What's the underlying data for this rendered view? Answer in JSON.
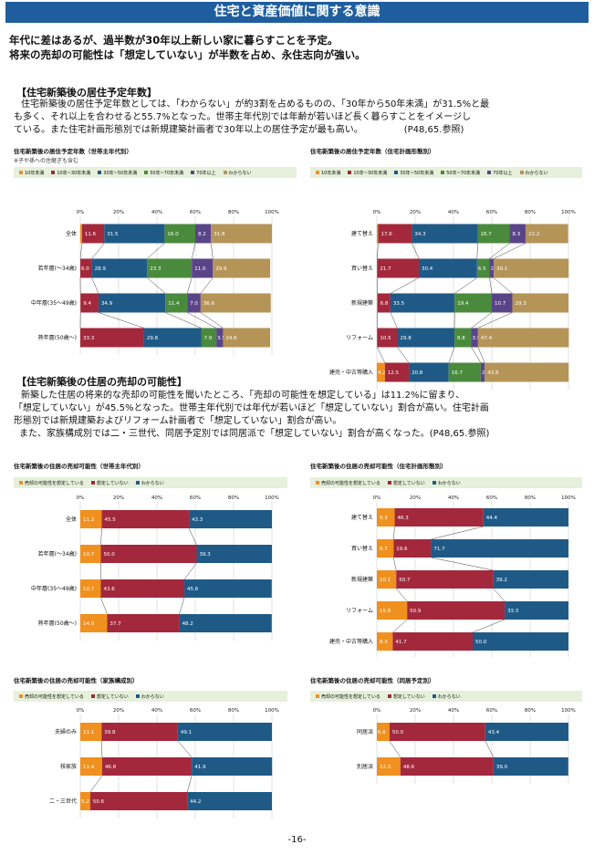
{
  "banner": "住宅と資産価値に関する意識",
  "headline": [
    "年代に差はあるが、過半数が30年以上新しい家に暮らすことを予定。",
    "将来の売却の可能性は「想定していない」が半数を占め、永住志向が強い。"
  ],
  "section1": {
    "title": "【住宅新築後の居住予定年数】",
    "lines": [
      "住宅新築後の居住予定年数としては、「わからない」が約3割を占めるものの、「30年から50年未満」が31.5%と最",
      "も多く、それ以上を合わせると55.7%となった。世帯主年代別では年齢が若いほど長く暮らすことをイメージし",
      "ている。また住宅計画形態別では新規建築計画者で30年以上の居住予定が最も高い。　　　　　(P48,65.参照)"
    ]
  },
  "section2": {
    "title": "【住宅新築後の住居の売却の可能性】",
    "lines": [
      "新築した住居の将来的な売却の可能性を聞いたところ、「売却の可能性を想定している」は11.2%に留まり、",
      "「想定していない」が45.5%となった。世帯主年代別では年代が若いほど「想定していない」割合が高い。住宅計画",
      "形態別では新規建築およびリフォーム計画者で「想定していない」割合が高い。",
      "また、家族構成別では二・三世代、同居予定別では同居派で「想定していない」割合が高くなった。(P48,65.参照)"
    ]
  },
  "page_number": "-16-",
  "colors": {
    "c1": "#f0901e",
    "c2": "#a3283c",
    "c3": "#1f5a87",
    "c4": "#4a8a3c",
    "c5": "#5a4488",
    "c6": "#b59458"
  },
  "chart_data": [
    {
      "id": "c1",
      "type": "bar",
      "orientation": "horizontal",
      "stacked": true,
      "xlim": [
        0,
        100
      ],
      "title": "住宅新築後の居住予定年数（世帯主年代別）",
      "note": "※子や孫への住継ぎも含む",
      "x_ticks": [
        "0%",
        "20%",
        "40%",
        "60%",
        "80%",
        "100%"
      ],
      "categories": [
        "全体",
        "若年層(～34歳)",
        "中年層(35～49歳)",
        "熟年層(50歳～)"
      ],
      "series": [
        {
          "name": "10年未満",
          "color": "#f0901e",
          "values": [
            0.9,
            0,
            0.1,
            0
          ]
        },
        {
          "name": "10年~30年未満",
          "color": "#a3283c",
          "values": [
            11.6,
            6.0,
            9.4,
            33.3
          ]
        },
        {
          "name": "30年~50年未満",
          "color": "#1f5a87",
          "values": [
            31.5,
            28.9,
            34.9,
            29.8
          ]
        },
        {
          "name": "50年~70年未満",
          "color": "#4a8a3c",
          "values": [
            16.0,
            23.3,
            11.4,
            7.9
          ]
        },
        {
          "name": "70年以上",
          "color": "#5a4488",
          "values": [
            8.2,
            11.0,
            7.0,
            3.5
          ]
        },
        {
          "name": "わからない",
          "color": "#b59458",
          "values": [
            31.8,
            29.9,
            36.6,
            24.6
          ]
        }
      ]
    },
    {
      "id": "c2",
      "type": "bar",
      "orientation": "horizontal",
      "stacked": true,
      "xlim": [
        0,
        100
      ],
      "title": "住宅新築後の居住予定年数（住宅計画形態別）",
      "x_ticks": [
        "0%",
        "20%",
        "40%",
        "60%",
        "80%",
        "100%"
      ],
      "categories": [
        "建て替え",
        "買い替え",
        "新規建築",
        "リフォーム",
        "建売・中古等購入"
      ],
      "series": [
        {
          "name": "10年未満",
          "color": "#f0901e",
          "values": [
            0.7,
            0.2,
            0.3,
            0.2,
            4.2
          ]
        },
        {
          "name": "10年~30年未満",
          "color": "#a3283c",
          "values": [
            17.6,
            21.7,
            6.8,
            10.5,
            12.5
          ]
        },
        {
          "name": "30年~50年未満",
          "color": "#1f5a87",
          "values": [
            34.3,
            30.4,
            33.5,
            29.8,
            20.8
          ]
        },
        {
          "name": "50年~70年未満",
          "color": "#4a8a3c",
          "values": [
            16.7,
            6.5,
            19.4,
            8.8,
            16.7
          ]
        },
        {
          "name": "70年以上",
          "color": "#5a4488",
          "values": [
            8.3,
            2.2,
            10.7,
            3.5,
            2.1
          ]
        },
        {
          "name": "わからない",
          "color": "#b59458",
          "values": [
            22.2,
            39.1,
            29.3,
            47.4,
            43.8
          ]
        }
      ]
    },
    {
      "id": "c3",
      "type": "bar",
      "orientation": "horizontal",
      "stacked": true,
      "xlim": [
        0,
        100
      ],
      "title": "住宅新築後の住居の売却可能性（世帯主年代別）",
      "x_ticks": [
        "0%",
        "20%",
        "40%",
        "60%",
        "80%",
        "100%"
      ],
      "categories": [
        "全体",
        "若年層(～34歳)",
        "中年層(35～49歳)",
        "熟年層(50歳～)"
      ],
      "series": [
        {
          "name": "売却の可能性を想定している",
          "color": "#f0901e",
          "values": [
            11.2,
            10.7,
            10.7,
            14.0
          ]
        },
        {
          "name": "想定していない",
          "color": "#a3283c",
          "values": [
            45.5,
            50.0,
            43.6,
            37.7
          ]
        },
        {
          "name": "わからない",
          "color": "#1f5a87",
          "values": [
            43.3,
            39.3,
            45.6,
            48.2
          ]
        }
      ]
    },
    {
      "id": "c4",
      "type": "bar",
      "orientation": "horizontal",
      "stacked": true,
      "xlim": [
        0,
        100
      ],
      "title": "住宅新築後の住居の売却可能性（住宅計画形態別）",
      "x_ticks": [
        "0%",
        "20%",
        "40%",
        "60%",
        "80%",
        "100%"
      ],
      "categories": [
        "建て替え",
        "買い替え",
        "新規建築",
        "リフォーム",
        "建売・中古等購入"
      ],
      "series": [
        {
          "name": "売却の可能性を想定している",
          "color": "#f0901e",
          "values": [
            9.3,
            8.7,
            10.1,
            15.8,
            8.3
          ]
        },
        {
          "name": "想定していない",
          "color": "#a3283c",
          "values": [
            46.3,
            19.6,
            50.7,
            50.9,
            41.7
          ]
        },
        {
          "name": "わからない",
          "color": "#1f5a87",
          "values": [
            44.4,
            71.7,
            39.2,
            33.3,
            50.0
          ]
        }
      ]
    },
    {
      "id": "c5",
      "type": "bar",
      "orientation": "horizontal",
      "stacked": true,
      "xlim": [
        0,
        100
      ],
      "title": "住宅新築後の住居の売却可能性（家族構成別）",
      "x_ticks": [
        "0%",
        "20%",
        "40%",
        "60%",
        "80%",
        "100%"
      ],
      "categories": [
        "夫婦のみ",
        "核家族",
        "二・三世代"
      ],
      "series": [
        {
          "name": "売却の可能性を想定している",
          "color": "#f0901e",
          "values": [
            11.1,
            11.4,
            5.2
          ]
        },
        {
          "name": "想定していない",
          "color": "#a3283c",
          "values": [
            39.8,
            46.8,
            50.6
          ]
        },
        {
          "name": "わからない",
          "color": "#1f5a87",
          "values": [
            49.1,
            41.9,
            44.2
          ]
        }
      ]
    },
    {
      "id": "c6",
      "type": "bar",
      "orientation": "horizontal",
      "stacked": true,
      "xlim": [
        0,
        100
      ],
      "title": "住宅新築後の住居の売却可能性（同居予定別）",
      "x_ticks": [
        "0%",
        "20%",
        "40%",
        "60%",
        "80%",
        "100%"
      ],
      "categories": [
        "同居派",
        "別居派"
      ],
      "series": [
        {
          "name": "売却の可能性を想定している",
          "color": "#f0901e",
          "values": [
            6.6,
            12.3
          ]
        },
        {
          "name": "想定していない",
          "color": "#a3283c",
          "values": [
            50.0,
            48.6
          ]
        },
        {
          "name": "わからない",
          "color": "#1f5a87",
          "values": [
            43.4,
            39.0
          ]
        }
      ]
    }
  ]
}
